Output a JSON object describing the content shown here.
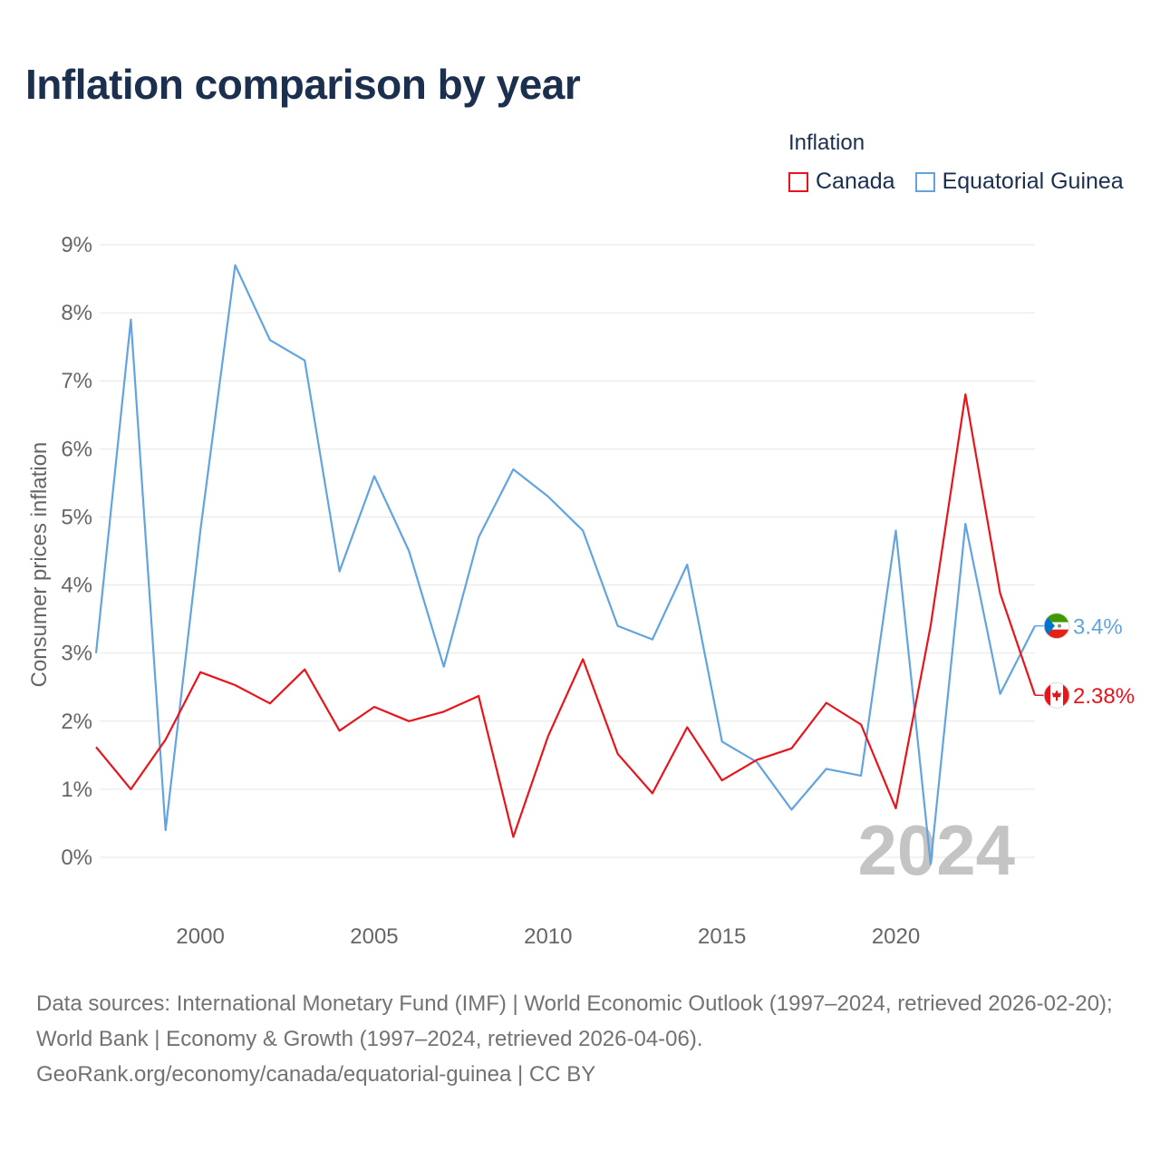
{
  "chart_data": {
    "type": "line",
    "title": "Inflation comparison by year",
    "legend_title": "Inflation",
    "ylabel": "Consumer prices inflation",
    "xlabel": "",
    "ylim": [
      -0.8,
      9
    ],
    "xlim": [
      1997,
      2024
    ],
    "y_ticks": [
      0,
      1,
      2,
      3,
      4,
      5,
      6,
      7,
      8,
      9
    ],
    "y_tick_labels": [
      "0%",
      "1%",
      "2%",
      "3%",
      "4%",
      "5%",
      "6%",
      "7%",
      "8%",
      "9%"
    ],
    "x_ticks": [
      2000,
      2005,
      2010,
      2015,
      2020
    ],
    "x_tick_labels": [
      "2000",
      "2005",
      "2010",
      "2015",
      "2020"
    ],
    "year_watermark": "2024",
    "x": [
      1997,
      1998,
      1999,
      2000,
      2001,
      2002,
      2003,
      2004,
      2005,
      2006,
      2007,
      2008,
      2009,
      2010,
      2011,
      2012,
      2013,
      2014,
      2015,
      2016,
      2017,
      2018,
      2019,
      2020,
      2021,
      2022,
      2023,
      2024
    ],
    "series": [
      {
        "name": "Canada",
        "color": "#e8141c",
        "end_label": "2.38%",
        "values": [
          1.62,
          1.0,
          1.73,
          2.72,
          2.53,
          2.26,
          2.76,
          1.86,
          2.21,
          2.0,
          2.14,
          2.37,
          0.3,
          1.78,
          2.91,
          1.52,
          0.94,
          1.91,
          1.13,
          1.43,
          1.6,
          2.27,
          1.95,
          0.72,
          3.4,
          6.8,
          3.88,
          2.38
        ]
      },
      {
        "name": "Equatorial Guinea",
        "color": "#61a4e0",
        "end_label": "3.4%",
        "values": [
          3.0,
          7.9,
          0.4,
          4.8,
          8.7,
          7.6,
          7.3,
          4.2,
          5.6,
          4.5,
          2.8,
          4.7,
          5.7,
          5.3,
          4.8,
          3.4,
          3.2,
          4.3,
          1.7,
          1.4,
          0.7,
          1.3,
          1.2,
          4.8,
          -0.1,
          4.9,
          2.4,
          3.4
        ]
      }
    ]
  },
  "footer": {
    "line1": "Data sources: International Monetary Fund (IMF) | World Economic Outlook (1997–2024, retrieved 2026-02-20); World Bank | Economy & Growth (1997–2024, retrieved 2026-04-06).",
    "line2": "GeoRank.org/economy/canada/equatorial-guinea | CC BY"
  }
}
